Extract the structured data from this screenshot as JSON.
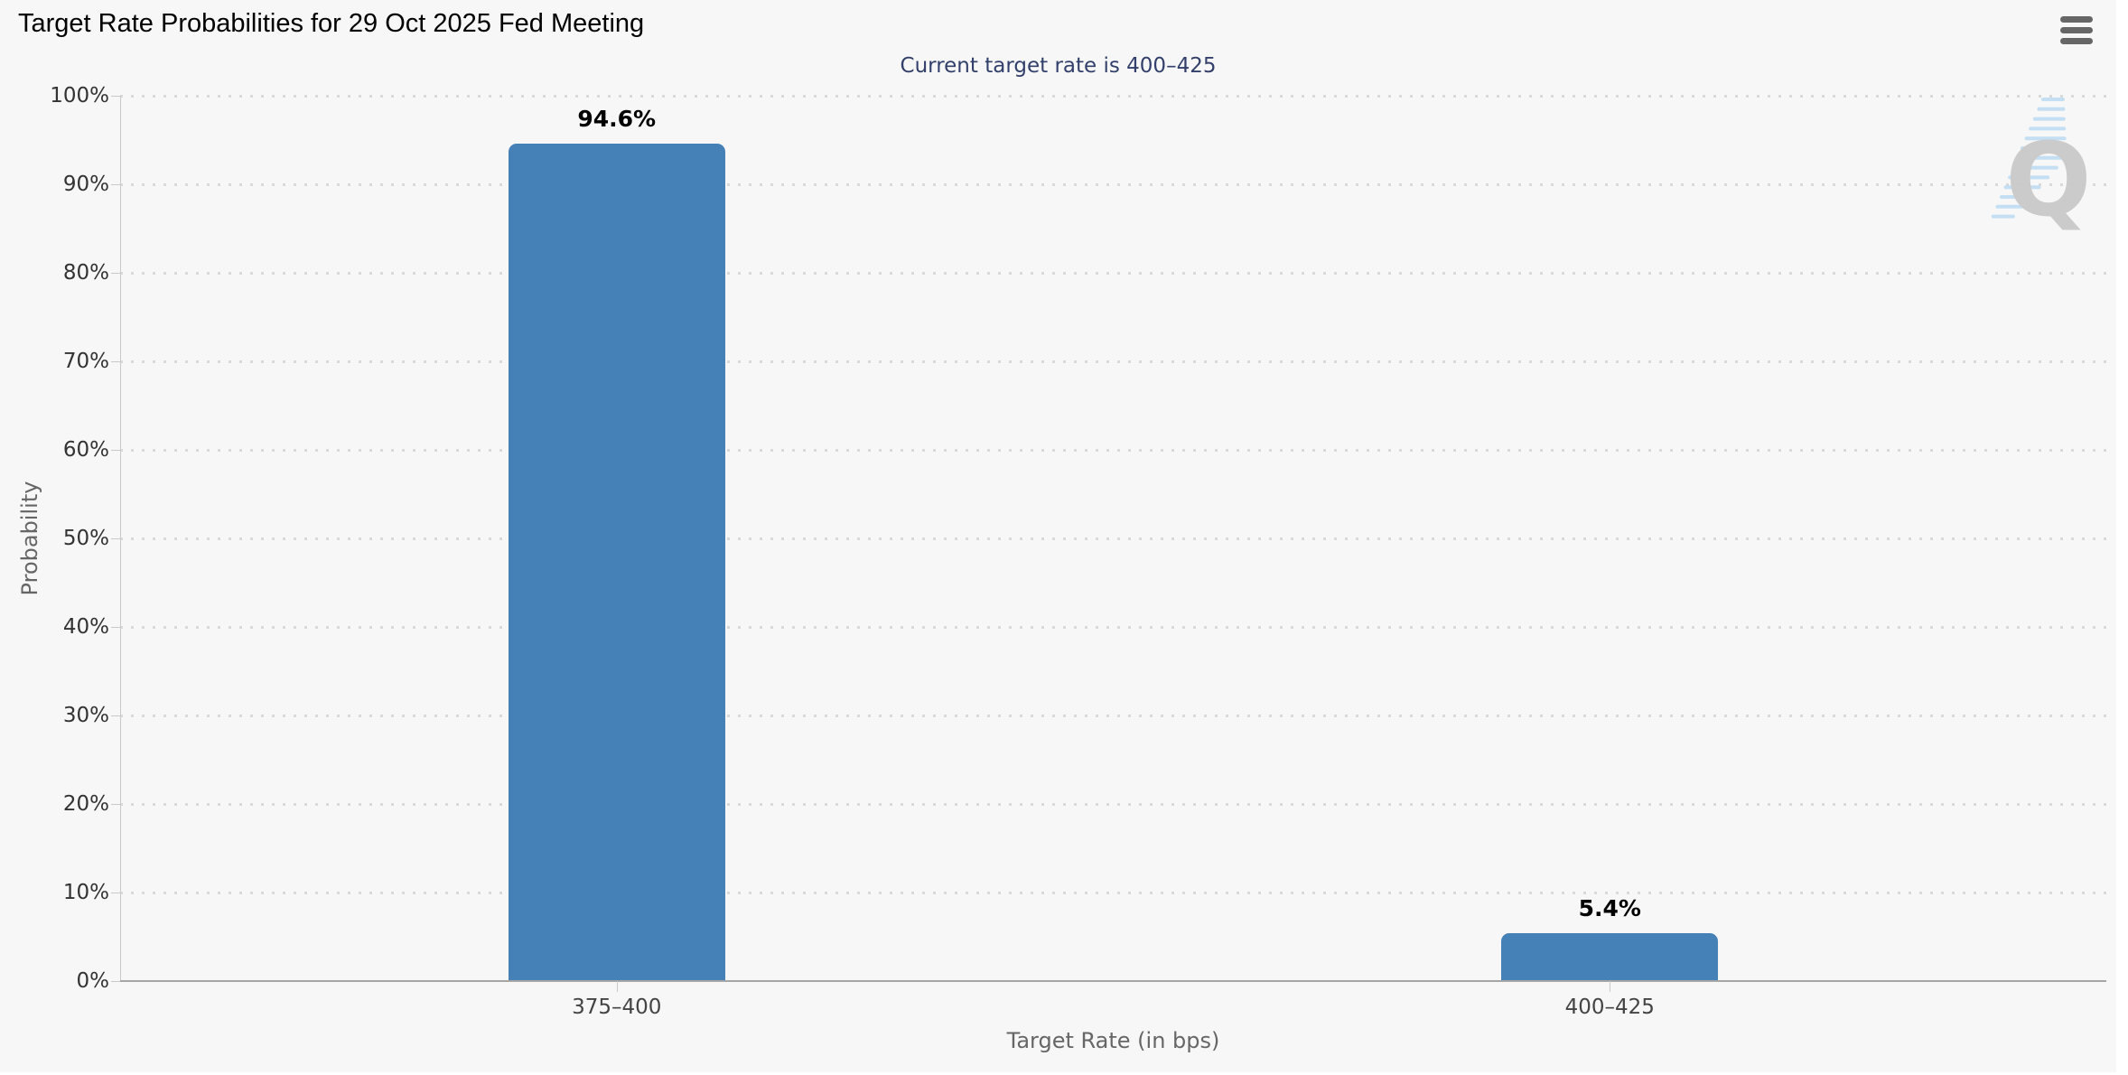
{
  "chart_data": {
    "type": "bar",
    "title": "Target Rate Probabilities for 29 Oct 2025 Fed Meeting",
    "subtitle": "Current target rate is 400–425",
    "categories": [
      "375–400",
      "400–425"
    ],
    "values": [
      94.6,
      5.4
    ],
    "value_labels": [
      "94.6%",
      "5.4%"
    ],
    "xlabel": "Target Rate (in bps)",
    "ylabel": "Probability",
    "ylim": [
      0,
      100
    ],
    "y_ticks": [
      "0%",
      "10%",
      "20%",
      "30%",
      "40%",
      "50%",
      "60%",
      "70%",
      "80%",
      "90%",
      "100%"
    ],
    "grid": "dotted-horizontal",
    "legend": "none",
    "bar_color": "#4580b7",
    "watermark": "Q"
  },
  "icons": {
    "menu": "hamburger-menu-icon"
  },
  "colors": {
    "page": "#ffffff",
    "background": "#f7f7f7",
    "bar": "#4580b7",
    "subtitle_text": "#32406b",
    "tick_label": "#333333",
    "category_label": "#444444",
    "axis_title": "#666666",
    "grid_dots": "#d9d9d9",
    "y_axis_line": "#c9c9c9",
    "x_axis_line": "#a6a6a6",
    "menu_icon": "#666666",
    "watermark_q": "#c9c9c9",
    "watermark_lines": "#b7d9f2"
  }
}
